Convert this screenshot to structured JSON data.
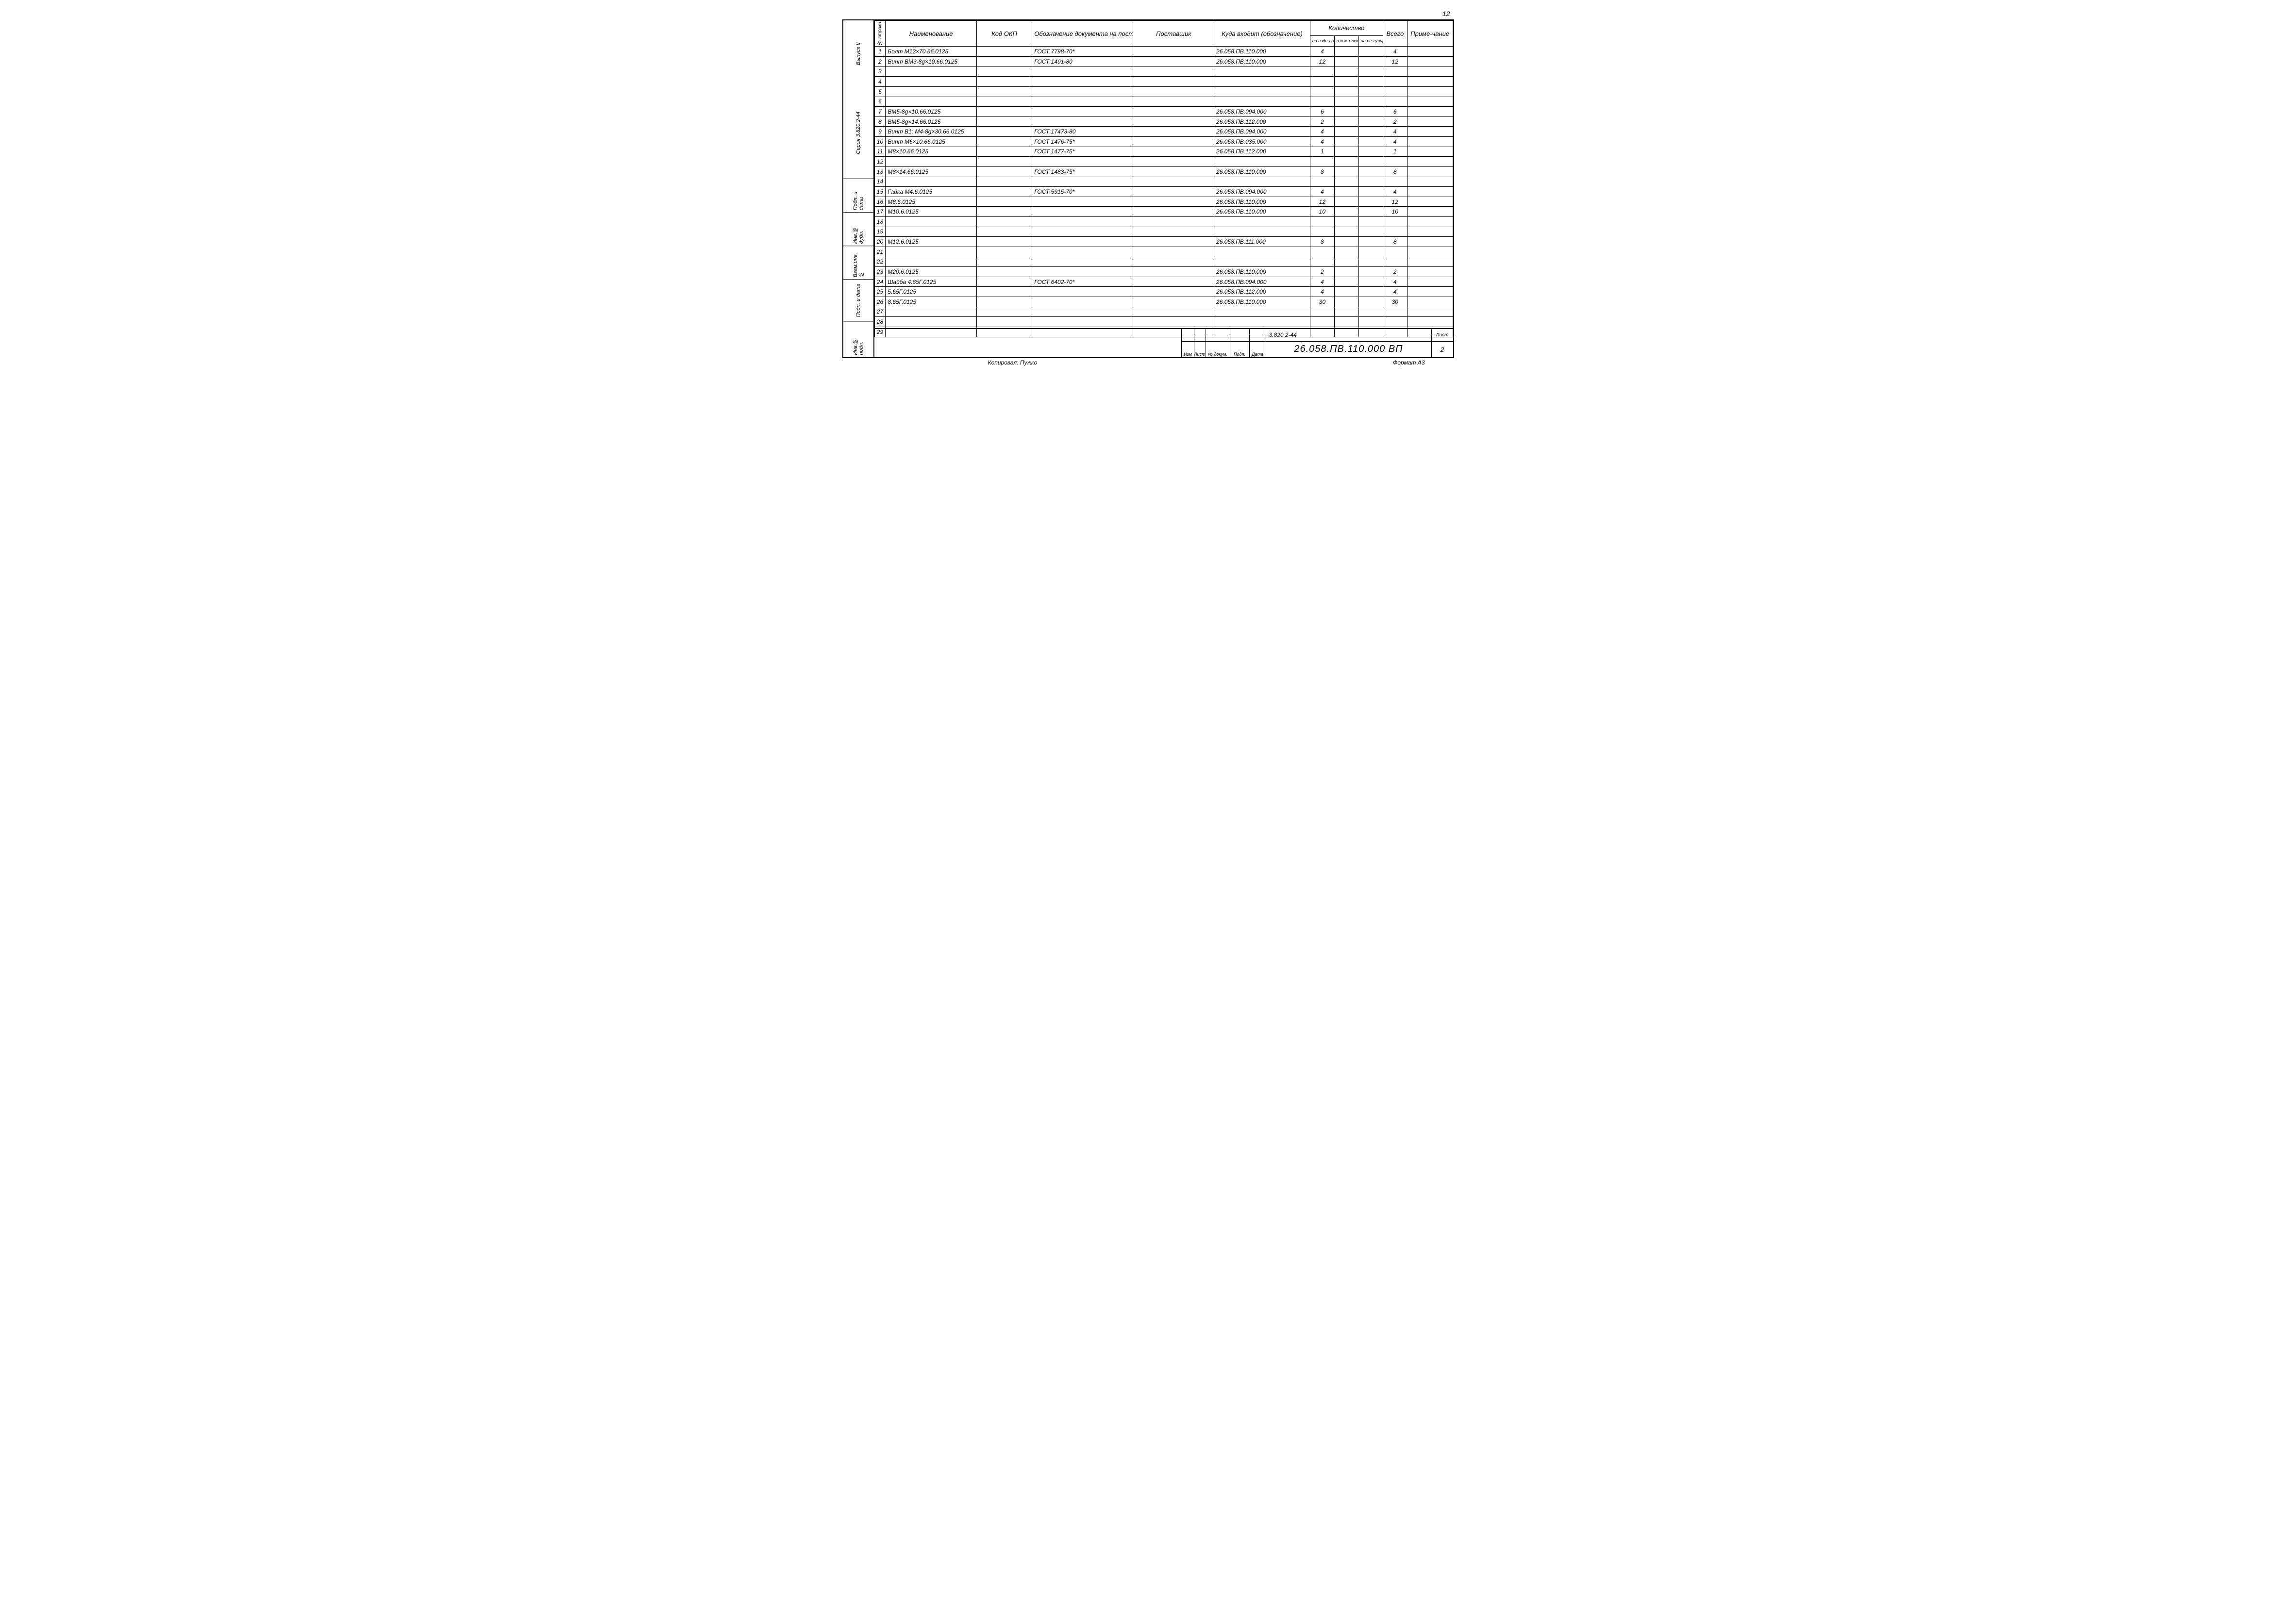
{
  "page_number_top": "12",
  "rail": {
    "top1": "Выпуск II",
    "top2": "Серия 3.820.2-44",
    "cells": [
      "Подп. и дата",
      "Инв.№ дубл.",
      "Взам.инв.№",
      "Подп. и дата",
      "Инв.№ подл."
    ]
  },
  "headers": {
    "num": "№ строки",
    "name": "Наименование",
    "okp": "Код ОКП",
    "doc": "Обозначение документа на поставку",
    "supplier": "Поставщик",
    "where": "Куда входит (обозначение)",
    "qty_group": "Количество",
    "qty1": "на изде-лие",
    "qty2": "в комп-лекты",
    "qty3": "на ре-гулир.",
    "total": "Всего",
    "note": "Приме-чание"
  },
  "rows": [
    {
      "n": "1",
      "name": "Болт М12×70.66.0125",
      "doc": "ГОСТ 7798-70*",
      "where": "26.058.ПВ.110.000",
      "q1": "4",
      "tot": "4"
    },
    {
      "n": "2",
      "name": "Винт ВМ3-8g×10.66.0125",
      "doc": "ГОСТ 1491-80",
      "where": "26.058.ПВ.110.000",
      "q1": "12",
      "tot": "12"
    },
    {
      "n": "3"
    },
    {
      "n": "4"
    },
    {
      "n": "5"
    },
    {
      "n": "6"
    },
    {
      "n": "7",
      "name": "ВМ5-8g×10.66.0125",
      "where": "26.058.ПВ.094.000",
      "q1": "6",
      "tot": "6"
    },
    {
      "n": "8",
      "name": "ВМ5-8g×14.66.0125",
      "where": "26.058.ПВ.112.000",
      "q1": "2",
      "tot": "2"
    },
    {
      "n": "9",
      "name": "Винт В1; М4-8g×30.66.0125",
      "doc": "ГОСТ 17473-80",
      "where": "26.058.ПВ.094.000",
      "q1": "4",
      "tot": "4"
    },
    {
      "n": "10",
      "name": "Винт М6×10.66.0125",
      "doc": "ГОСТ 1476-75*",
      "where": "26.058.ПВ.035.000",
      "q1": "4",
      "tot": "4"
    },
    {
      "n": "11",
      "name": "М8×10.66.0125",
      "doc": "ГОСТ 1477-75*",
      "where": "26.058.ПВ.112.000",
      "q1": "1",
      "tot": "1"
    },
    {
      "n": "12"
    },
    {
      "n": "13",
      "name": "М8×14.66.0125",
      "doc": "ГОСТ 1483-75*",
      "where": "26.058.ПВ.110.000",
      "q1": "8",
      "tot": "8"
    },
    {
      "n": "14"
    },
    {
      "n": "15",
      "name": "Гайка М4.6.0125",
      "doc": "ГОСТ 5915-70*",
      "where": "26.058.ПВ.094.000",
      "q1": "4",
      "tot": "4"
    },
    {
      "n": "16",
      "name": "М8.6.0125",
      "where": "26.058.ПВ.110.000",
      "q1": "12",
      "tot": "12"
    },
    {
      "n": "17",
      "name": "М10.6.0125",
      "where": "26.058.ПВ.110.000",
      "q1": "10",
      "tot": "10"
    },
    {
      "n": "18"
    },
    {
      "n": "19"
    },
    {
      "n": "20",
      "name": "М12.6.0125",
      "where": "26.058.ПВ.111.000",
      "q1": "8",
      "tot": "8"
    },
    {
      "n": "21"
    },
    {
      "n": "22"
    },
    {
      "n": "23",
      "name": "М20.6.0125",
      "where": "26.058.ПВ.110.000",
      "q1": "2",
      "tot": "2"
    },
    {
      "n": "24",
      "name": "Шайба 4.65Г.0125",
      "doc": "ГОСТ 6402-70*",
      "where": "26.058.ПВ.094.000",
      "q1": "4",
      "tot": "4"
    },
    {
      "n": "25",
      "name": "5.65Г.0125",
      "where": "26.058.ПВ.112.000",
      "q1": "4",
      "tot": "4"
    },
    {
      "n": "26",
      "name": "8.65Г.0125",
      "where": "26.058.ПВ.110.000",
      "q1": "30",
      "tot": "30"
    },
    {
      "n": "27"
    },
    {
      "n": "28"
    },
    {
      "n": "29"
    }
  ],
  "title_block": {
    "small_headers": [
      "Изм",
      "Лист",
      "№ докум.",
      "Подп.",
      "Дата"
    ],
    "series": "3.820.2-44",
    "code": "26.058.ПВ.110.000 ВП",
    "sheet_label": "Лист",
    "sheet_num": "2"
  },
  "footer": {
    "copied": "Копировал: Пужко",
    "format": "Формат А3"
  }
}
